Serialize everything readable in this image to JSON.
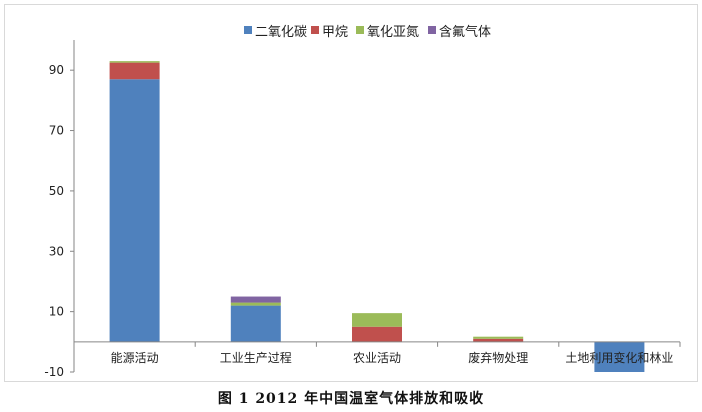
{
  "chart_data": {
    "type": "bar",
    "stacked": true,
    "categories": [
      "能源活动",
      "工业生产过程",
      "农业活动",
      "废弃物处理",
      "土地利用变化和林业"
    ],
    "series": [
      {
        "name": "二氧化碳",
        "color": "#4f81bd",
        "values": [
          87,
          12,
          0,
          0,
          -10
        ]
      },
      {
        "name": "甲烷",
        "color": "#c0504d",
        "values": [
          5.5,
          0,
          5,
          1,
          0
        ]
      },
      {
        "name": "氧化亚氮",
        "color": "#9bbb59",
        "values": [
          0.5,
          1,
          4.5,
          0.7,
          0
        ]
      },
      {
        "name": "含氟气体",
        "color": "#8064a2",
        "values": [
          0,
          2,
          0,
          0,
          0
        ]
      }
    ],
    "ylim": [
      -10,
      100
    ],
    "yticks": [
      "-10",
      "10",
      "30",
      "50",
      "70",
      "90"
    ],
    "grid": false,
    "legend_position": "top"
  },
  "caption": "图 1  2012 年中国温室气体排放和吸收"
}
